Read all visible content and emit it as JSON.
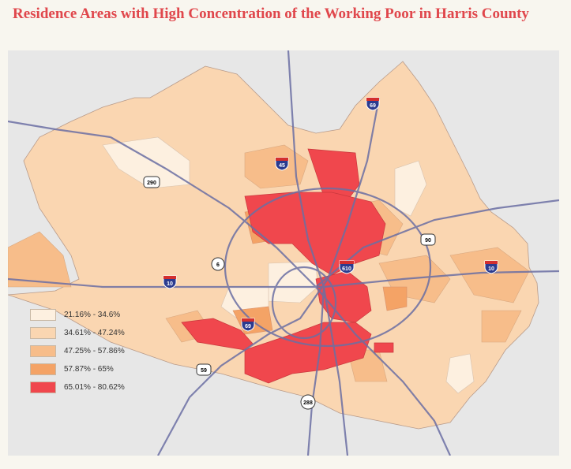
{
  "title": "Residence Areas with High Concentration of the Working Poor in Harris County",
  "colors": {
    "title": "#e0474c",
    "background": "#f8f6ef",
    "basemap": "#e7e7e7",
    "highways": "#6b6fa3"
  },
  "highway_shields": [
    {
      "type": "interstate",
      "label": "69",
      "icon": "interstate-shield-icon"
    },
    {
      "type": "interstate",
      "label": "45",
      "icon": "interstate-shield-icon"
    },
    {
      "type": "us",
      "label": "290",
      "icon": "us-highway-shield-icon"
    },
    {
      "type": "us",
      "label": "90",
      "icon": "us-highway-shield-icon"
    },
    {
      "type": "interstate",
      "label": "610",
      "icon": "interstate-shield-icon"
    },
    {
      "type": "interstate",
      "label": "10",
      "icon": "interstate-shield-icon"
    },
    {
      "type": "state",
      "label": "6",
      "icon": "state-highway-shield-icon"
    },
    {
      "type": "interstate",
      "label": "10",
      "icon": "interstate-shield-icon"
    },
    {
      "type": "interstate",
      "label": "69",
      "icon": "interstate-shield-icon"
    },
    {
      "type": "us",
      "label": "59",
      "icon": "us-highway-shield-icon"
    },
    {
      "type": "state",
      "label": "288",
      "icon": "state-highway-shield-icon"
    }
  ],
  "legend": [
    {
      "label": "21.16% - 34.6%",
      "color": "#fdf0e0"
    },
    {
      "label": "34.61% - 47.24%",
      "color": "#fad6b1"
    },
    {
      "label": "47.25% - 57.86%",
      "color": "#f7bd8a"
    },
    {
      "label": "57.87% - 65%",
      "color": "#f4a366"
    },
    {
      "label": "65.01% - 80.62%",
      "color": "#f0474d"
    }
  ]
}
